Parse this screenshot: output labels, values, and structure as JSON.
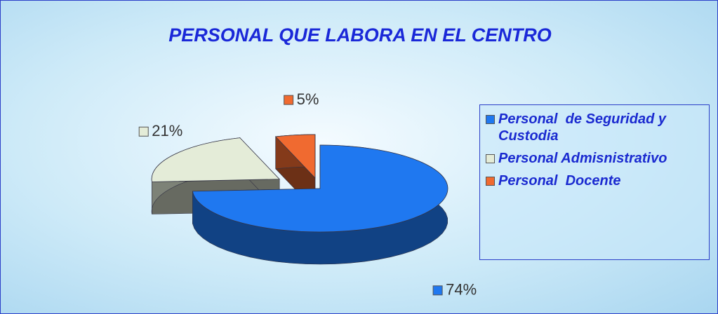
{
  "chart_data": {
    "type": "pie",
    "title": "PERSONAL QUE LABORA EN EL CENTRO",
    "categories": [
      "Personal  de Seguridad y Custodia",
      "Personal Admisnistrativo",
      "Personal  Docente"
    ],
    "values": [
      74,
      21,
      5
    ],
    "value_labels": [
      "74%",
      "21%",
      "5%"
    ],
    "colors": [
      "#1f78f0",
      "#e4ecd8",
      "#f06a30"
    ],
    "legend": "right"
  }
}
